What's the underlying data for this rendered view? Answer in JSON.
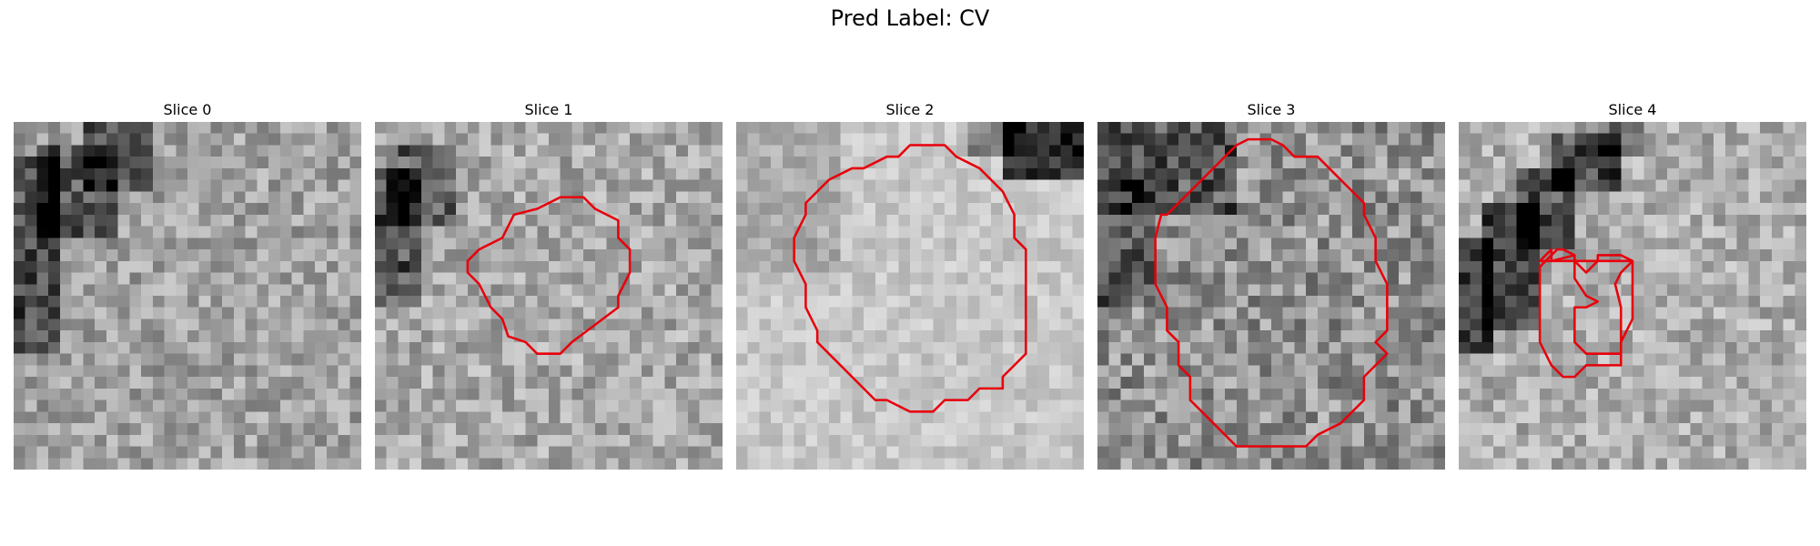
{
  "figure": {
    "title": "Pred Label: CV"
  },
  "panels": [
    {
      "title": "Slice 0",
      "grid": 30,
      "seed": 11,
      "base": 0.63,
      "noise": 0.33,
      "dark_regions": [
        {
          "x0": 0,
          "y0": 3,
          "x1": 4,
          "y1": 20,
          "amount": 0.38
        },
        {
          "x0": 2,
          "y0": 2,
          "x1": 9,
          "y1": 10,
          "amount": 0.34
        },
        {
          "x0": 6,
          "y0": 0,
          "x1": 12,
          "y1": 6,
          "amount": 0.32
        }
      ],
      "bright_regions": [],
      "contours": []
    },
    {
      "title": "Slice 1",
      "grid": 30,
      "seed": 23,
      "base": 0.66,
      "noise": 0.33,
      "dark_regions": [
        {
          "x0": 0,
          "y0": 4,
          "x1": 4,
          "y1": 16,
          "amount": 0.36
        },
        {
          "x0": 1,
          "y0": 2,
          "x1": 7,
          "y1": 9,
          "amount": 0.3
        }
      ],
      "bright_regions": [],
      "contours": [
        [
          [
            11,
            10
          ],
          [
            12,
            8
          ],
          [
            14,
            7.5
          ],
          [
            16,
            6.5
          ],
          [
            18,
            6.5
          ],
          [
            19,
            7.5
          ],
          [
            21,
            8.5
          ],
          [
            21,
            10
          ],
          [
            22,
            11
          ],
          [
            22,
            13
          ],
          [
            21,
            15
          ],
          [
            21,
            16
          ],
          [
            19,
            17.5
          ],
          [
            17,
            19
          ],
          [
            16,
            20
          ],
          [
            14,
            20
          ],
          [
            13,
            19
          ],
          [
            11.5,
            18.5
          ],
          [
            11,
            17
          ],
          [
            10,
            16
          ],
          [
            9,
            14
          ],
          [
            8,
            13
          ],
          [
            8,
            12
          ],
          [
            9,
            11
          ]
        ]
      ]
    },
    {
      "title": "Slice 2",
      "grid": 30,
      "seed": 37,
      "base": 0.78,
      "noise": 0.18,
      "dark_regions": [
        {
          "x0": 23,
          "y0": 0,
          "x1": 30,
          "y1": 5,
          "amount": 0.65
        },
        {
          "x0": 20,
          "y0": 0,
          "x1": 24,
          "y1": 3,
          "amount": 0.35
        },
        {
          "x0": 0,
          "y0": 0,
          "x1": 9,
          "y1": 13,
          "amount": 0.12
        }
      ],
      "bright_regions": [],
      "contours": [
        [
          [
            7,
            6
          ],
          [
            8,
            5
          ],
          [
            10,
            4
          ],
          [
            11,
            4
          ],
          [
            13,
            3
          ],
          [
            14,
            3
          ],
          [
            15,
            2
          ],
          [
            18,
            2
          ],
          [
            19,
            3
          ],
          [
            21,
            4
          ],
          [
            23,
            6
          ],
          [
            24,
            8
          ],
          [
            24,
            10
          ],
          [
            25,
            11
          ],
          [
            25,
            15
          ],
          [
            25,
            20
          ],
          [
            23,
            22
          ],
          [
            23,
            23
          ],
          [
            21,
            23
          ],
          [
            20,
            24
          ],
          [
            18,
            24
          ],
          [
            17,
            25
          ],
          [
            15,
            25
          ],
          [
            13,
            24
          ],
          [
            12,
            24
          ],
          [
            10,
            22
          ],
          [
            8,
            20
          ],
          [
            7,
            19
          ],
          [
            7,
            18
          ],
          [
            6,
            16
          ],
          [
            6,
            14
          ],
          [
            5,
            12
          ],
          [
            5,
            10
          ],
          [
            6,
            8
          ],
          [
            6,
            7
          ]
        ]
      ]
    },
    {
      "title": "Slice 3",
      "grid": 30,
      "seed": 53,
      "base": 0.57,
      "noise": 0.42,
      "dark_regions": [
        {
          "x0": 0,
          "y0": 0,
          "x1": 12,
          "y1": 8,
          "amount": 0.26
        },
        {
          "x0": 0,
          "y0": 5,
          "x1": 5,
          "y1": 16,
          "amount": 0.22
        }
      ],
      "bright_regions": [],
      "contours": [
        [
          [
            6,
            8
          ],
          [
            8,
            6
          ],
          [
            10,
            4
          ],
          [
            11,
            3
          ],
          [
            12,
            2
          ],
          [
            12,
            2
          ],
          [
            13,
            1.5
          ],
          [
            15,
            1.5
          ],
          [
            16,
            2
          ],
          [
            17,
            3
          ],
          [
            19,
            3
          ],
          [
            20,
            4
          ],
          [
            22,
            6
          ],
          [
            23,
            7
          ],
          [
            23,
            8
          ],
          [
            24,
            10
          ],
          [
            24,
            12
          ],
          [
            25,
            14
          ],
          [
            25,
            16
          ],
          [
            25,
            18
          ],
          [
            24,
            19
          ],
          [
            25,
            20
          ],
          [
            24,
            21
          ],
          [
            23,
            22
          ],
          [
            23,
            24
          ],
          [
            22,
            25
          ],
          [
            21,
            26
          ],
          [
            19,
            27
          ],
          [
            18,
            28
          ],
          [
            12,
            28
          ],
          [
            11,
            27
          ],
          [
            10,
            26
          ],
          [
            9,
            25
          ],
          [
            8,
            24
          ],
          [
            8,
            22
          ],
          [
            7,
            21
          ],
          [
            7,
            19
          ],
          [
            6,
            18
          ],
          [
            6,
            16
          ],
          [
            5,
            14
          ],
          [
            5,
            12
          ],
          [
            5,
            10
          ],
          [
            5.5,
            8
          ]
        ]
      ]
    },
    {
      "title": "Slice 4",
      "grid": 30,
      "seed": 71,
      "base": 0.68,
      "noise": 0.32,
      "dark_regions": [
        {
          "x0": 0,
          "y0": 10,
          "x1": 3,
          "y1": 20,
          "amount": 0.42
        },
        {
          "x0": 2,
          "y0": 7,
          "x1": 7,
          "y1": 18,
          "amount": 0.42
        },
        {
          "x0": 5,
          "y0": 4,
          "x1": 10,
          "y1": 11,
          "amount": 0.42
        },
        {
          "x0": 8,
          "y0": 1,
          "x1": 14,
          "y1": 6,
          "amount": 0.42
        },
        {
          "x0": 12,
          "y0": 0,
          "x1": 16,
          "y1": 3,
          "amount": 0.3
        }
      ],
      "bright_regions": [],
      "contours": [
        [
          [
            7,
            12
          ],
          [
            8,
            11
          ],
          [
            8,
            12
          ],
          [
            10,
            11.5
          ],
          [
            10,
            13.5
          ],
          [
            11,
            15
          ],
          [
            12,
            15.5
          ],
          [
            11,
            16
          ],
          [
            10,
            16
          ],
          [
            10,
            17
          ],
          [
            10,
            19
          ],
          [
            11,
            20
          ],
          [
            12,
            20
          ],
          [
            13,
            20
          ],
          [
            14,
            20
          ],
          [
            14,
            18
          ],
          [
            14,
            16
          ],
          [
            13.5,
            14
          ],
          [
            14,
            13
          ],
          [
            15,
            12
          ],
          [
            14,
            11.5
          ],
          [
            13,
            11.5
          ],
          [
            12,
            11.5
          ],
          [
            12,
            12
          ],
          [
            11,
            13
          ],
          [
            10,
            12
          ],
          [
            10,
            11.5
          ],
          [
            9,
            11
          ],
          [
            8.5,
            11
          ],
          [
            8,
            11.5
          ],
          [
            7,
            12.5
          ],
          [
            7,
            14
          ],
          [
            7,
            19
          ],
          [
            8,
            21
          ],
          [
            9,
            22
          ],
          [
            10,
            22
          ],
          [
            11,
            21
          ],
          [
            13,
            21
          ],
          [
            14,
            21
          ],
          [
            14,
            19
          ],
          [
            15,
            17
          ],
          [
            15,
            15
          ],
          [
            15,
            13
          ],
          [
            15,
            12
          ]
        ]
      ]
    }
  ]
}
